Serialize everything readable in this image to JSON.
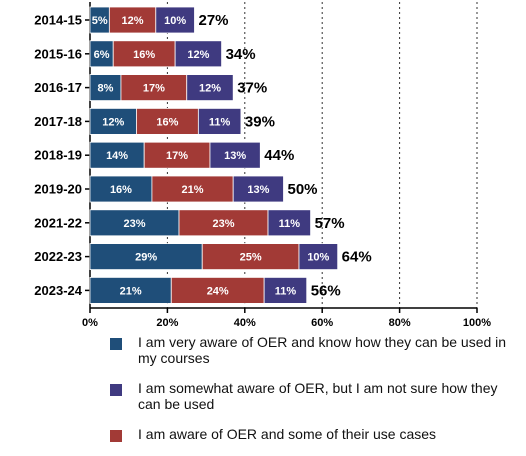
{
  "chart_data": {
    "type": "bar",
    "orientation": "horizontal",
    "stacked": true,
    "categories": [
      "2014-15",
      "2015-16",
      "2016-17",
      "2017-18",
      "2018-19",
      "2019-20",
      "2021-22",
      "2022-23",
      "2023-24"
    ],
    "series": [
      {
        "name": "I am very aware of OER and know how they can be used in my courses",
        "color": "#1f4e79",
        "values": [
          5,
          6,
          8,
          12,
          14,
          16,
          23,
          29,
          21
        ]
      },
      {
        "name": "I am aware of OER and some of their use cases",
        "color": "#a23a36",
        "values": [
          12,
          16,
          17,
          16,
          17,
          21,
          23,
          25,
          24
        ]
      },
      {
        "name": "I am somewhat aware of OER, but I am not sure how they can be used",
        "color": "#3f3a80",
        "values": [
          10,
          12,
          12,
          11,
          13,
          13,
          11,
          10,
          11
        ]
      }
    ],
    "totals": [
      27,
      34,
      37,
      39,
      44,
      50,
      57,
      64,
      56
    ],
    "xlim": [
      0,
      100
    ],
    "xticks": [
      0,
      20,
      40,
      60,
      80,
      100
    ],
    "value_suffix": "%",
    "grid": "vertical-dotted",
    "legend_placement": "bottom"
  },
  "legend": [
    {
      "label": "I am very aware of OER and know how they can be used in my courses",
      "color": "#1f4e79"
    },
    {
      "label": "I am somewhat aware of OER, but I am not sure how they can be used",
      "color": "#3f3a80"
    },
    {
      "label": "I am aware of OER and some of their use cases",
      "color": "#a23a36"
    }
  ]
}
